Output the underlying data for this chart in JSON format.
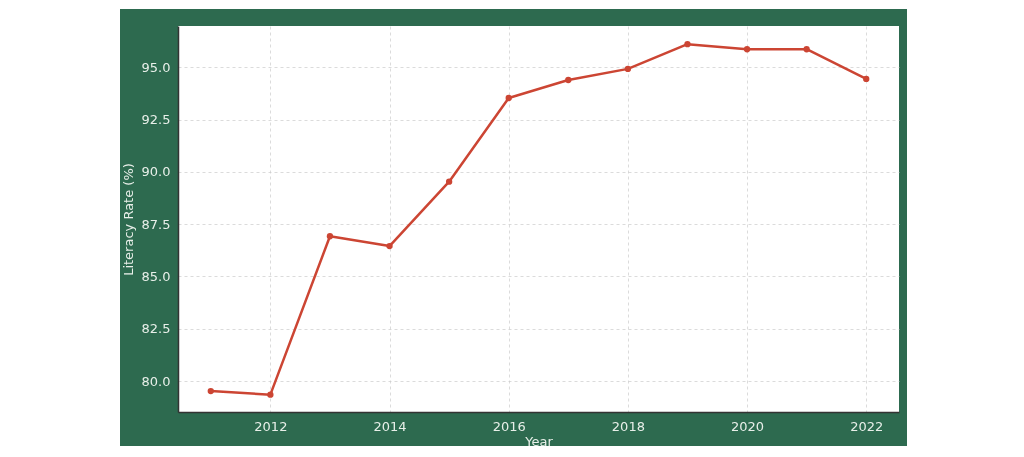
{
  "chart_data": {
    "type": "line",
    "xlabel": "Year",
    "ylabel": "Literacy Rate (%)",
    "x": [
      2011,
      2012,
      2013,
      2014,
      2015,
      2016,
      2017,
      2018,
      2019,
      2020,
      2021,
      2022
    ],
    "series": [
      {
        "color": "#cc4533",
        "values": [
          79.52,
          79.35,
          86.92,
          86.45,
          89.53,
          93.53,
          94.39,
          94.92,
          96.1,
          95.86,
          95.86,
          94.44
        ]
      }
    ],
    "xlim": [
      2010.45,
      2022.55
    ],
    "xticks": [
      2012,
      2014,
      2016,
      2018,
      2020,
      2022
    ],
    "ylim": [
      78.52,
      96.97
    ],
    "yticks": [
      {
        "value": 80,
        "label": "80.0"
      },
      82.5,
      {
        "value": 85,
        "label": "85.0"
      },
      87.5,
      {
        "value": 90,
        "label": "90.0"
      },
      92.5,
      {
        "value": 95,
        "label": "95.0"
      }
    ],
    "grid": true,
    "marker": "circle",
    "line_style": "solid"
  }
}
